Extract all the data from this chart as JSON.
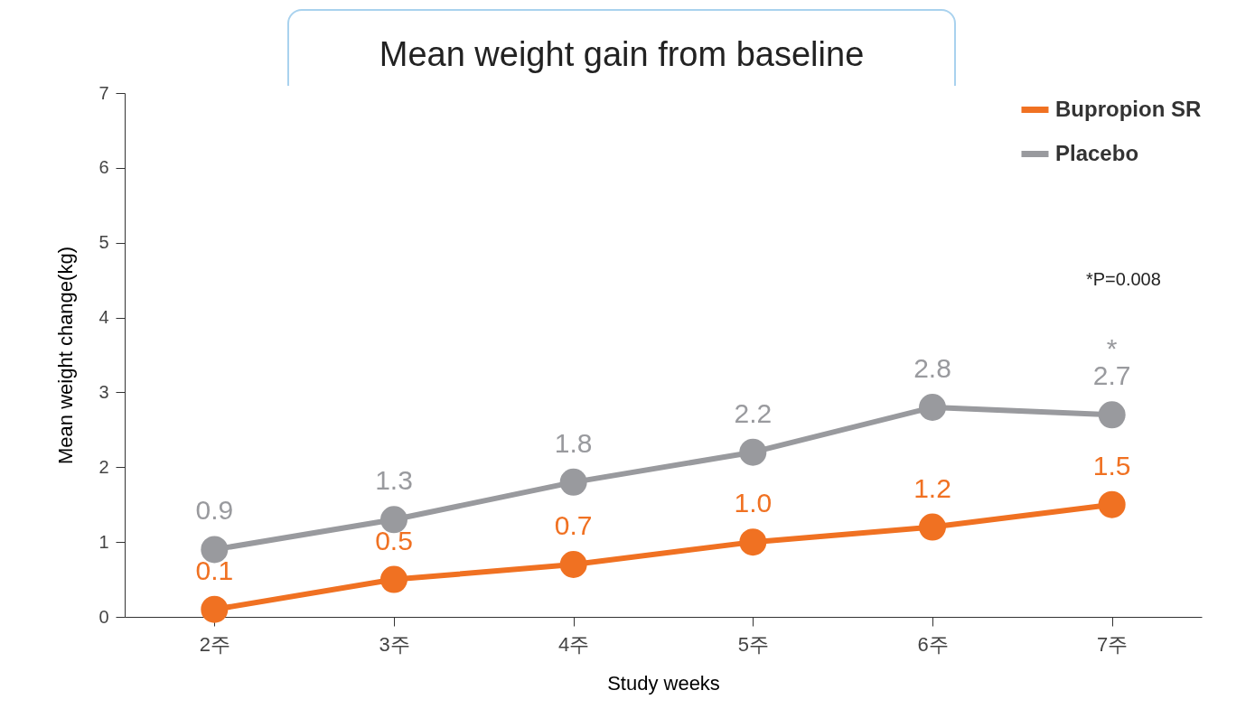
{
  "chart_data": {
    "type": "line",
    "title": "Mean weight gain from baseline",
    "xlabel": "Study weeks",
    "ylabel": "Mean weight change(kg)",
    "categories": [
      "2주",
      "3주",
      "4주",
      "5주",
      "6주",
      "7주"
    ],
    "series": [
      {
        "name": "Bupropion SR",
        "color": "#f07122",
        "values": [
          0.1,
          0.5,
          0.7,
          1.0,
          1.2,
          1.5
        ],
        "value_labels": [
          "0.1",
          "0.5",
          "0.7",
          "1.0",
          "1.2",
          "1.5"
        ]
      },
      {
        "name": "Placebo",
        "color": "#999a9e",
        "values": [
          0.9,
          1.3,
          1.8,
          2.2,
          2.8,
          2.7
        ],
        "value_labels": [
          "0.9",
          "1.3",
          "1.8",
          "2.2",
          "2.8",
          "2.7"
        ]
      }
    ],
    "ylim": [
      0,
      7
    ],
    "yticks": [
      0,
      1,
      2,
      3,
      4,
      5,
      6,
      7
    ],
    "grid": false,
    "legend": "top right",
    "marker": "circle",
    "line_style": "solid",
    "annotations": [
      "*P=0.008",
      {
        "text": "*",
        "x": "7주",
        "y": 2.7
      }
    ]
  }
}
